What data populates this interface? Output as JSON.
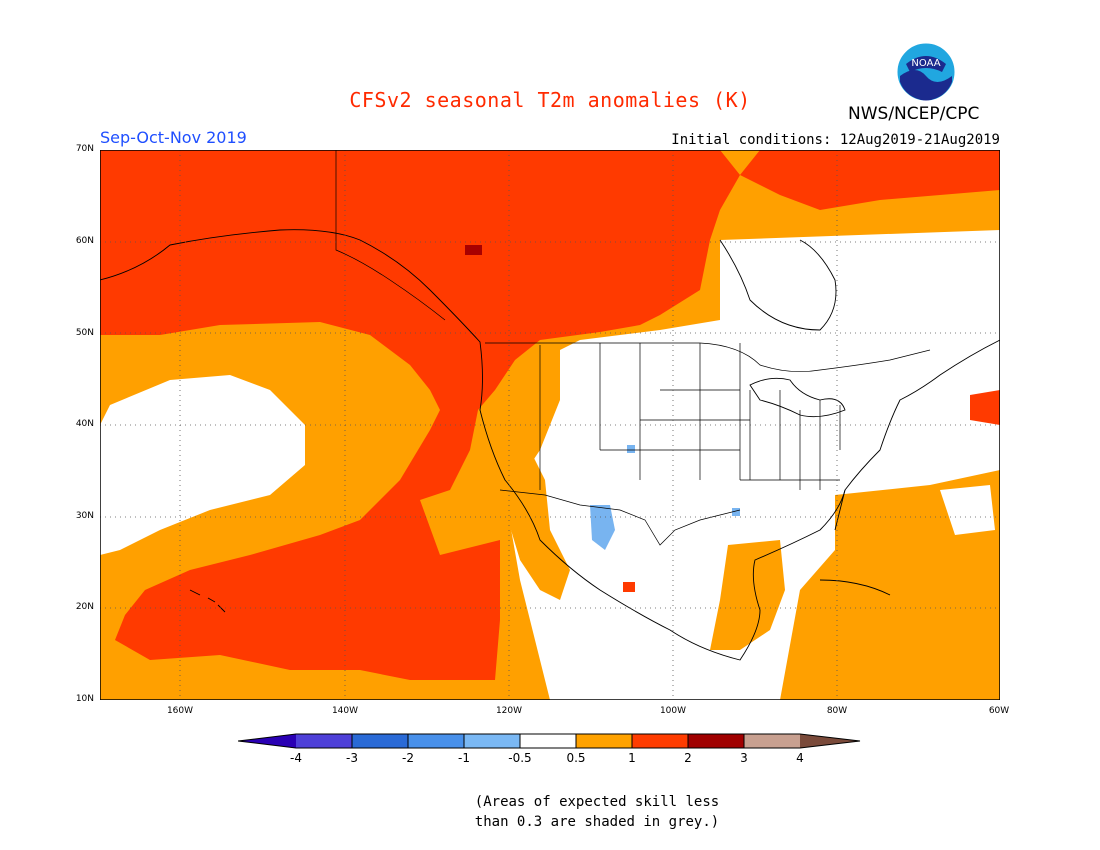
{
  "title": "CFSv2 seasonal T2m anomalies (K)",
  "season": "Sep-Oct-Nov 2019",
  "initial_conditions": "Initial conditions: 12Aug2019-21Aug2019",
  "agency": "NWS/NCEP/CPC",
  "logo_text": "NOAA",
  "lat_labels": [
    "70N",
    "60N",
    "50N",
    "40N",
    "30N",
    "20N",
    "10N"
  ],
  "lon_labels": [
    "160W",
    "140W",
    "120W",
    "100W",
    "80W",
    "60W"
  ],
  "colorbar": {
    "labels": [
      "-4",
      "-3",
      "-2",
      "-1",
      "-0.5",
      "0.5",
      "1",
      "2",
      "3",
      "4"
    ],
    "colors": [
      "#2a00b4",
      "#4e40d8",
      "#2a6ad6",
      "#4890ea",
      "#7ab8f4",
      "#ffffff",
      "#ffa200",
      "#ff3c00",
      "#a00000",
      "#c8a090",
      "#7a4a3a"
    ]
  },
  "note_line1": "(Areas of expected skill less",
  "note_line2": "than 0.3 are shaded in grey.)",
  "map_colors": {
    "white": "#ffffff",
    "orange": "#ffa000",
    "red": "#ff3a00",
    "darkred": "#a80000",
    "lightblue": "#78b4f0"
  }
}
